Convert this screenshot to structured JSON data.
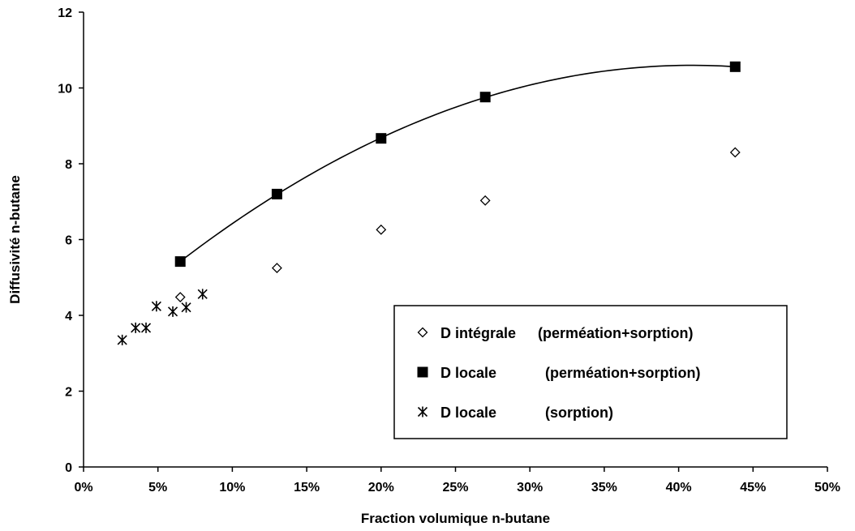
{
  "chart_data": {
    "type": "scatter",
    "title": "",
    "xlabel": "Fraction volumique n-butane",
    "ylabel": "Diffusivité n-butane",
    "xlim": [
      0,
      0.5
    ],
    "ylim": [
      0,
      12
    ],
    "x_ticks": [
      0,
      0.05,
      0.1,
      0.15,
      0.2,
      0.25,
      0.3,
      0.35,
      0.4,
      0.45,
      0.5
    ],
    "x_tick_labels": [
      "0%",
      "5%",
      "10%",
      "15%",
      "20%",
      "25%",
      "30%",
      "35%",
      "40%",
      "45%",
      "50%"
    ],
    "y_ticks": [
      0,
      2,
      4,
      6,
      8,
      10,
      12
    ],
    "y_tick_labels": [
      "0",
      "2",
      "4",
      "6",
      "8",
      "10",
      "12"
    ],
    "grid": false,
    "legend_position": "bottom-right",
    "series": [
      {
        "name": "D intégrale (perméation+sorption)",
        "marker": "diamond-open",
        "color": "#000000",
        "x": [
          0.065,
          0.13,
          0.2,
          0.27,
          0.438
        ],
        "y": [
          4.48,
          5.25,
          6.26,
          7.03,
          8.3
        ]
      },
      {
        "name": "D locale (perméation+sorption)",
        "marker": "square-filled",
        "color": "#000000",
        "trendline": "polynomial",
        "x": [
          0.065,
          0.13,
          0.2,
          0.27,
          0.438
        ],
        "y": [
          5.42,
          7.2,
          8.67,
          9.76,
          10.56
        ]
      },
      {
        "name": "D locale (sorption)",
        "marker": "asterisk",
        "color": "#000000",
        "x": [
          0.026,
          0.035,
          0.042,
          0.049,
          0.06,
          0.069,
          0.08
        ],
        "y": [
          3.35,
          3.67,
          3.67,
          4.24,
          4.1,
          4.21,
          4.56
        ]
      }
    ],
    "legend": {
      "entries": [
        {
          "label": "D intégrale",
          "detail": "(perméation+sorption)"
        },
        {
          "label": "D locale",
          "detail": "(perméation+sorption)"
        },
        {
          "label": "D locale",
          "detail": "(sorption)"
        }
      ]
    }
  }
}
